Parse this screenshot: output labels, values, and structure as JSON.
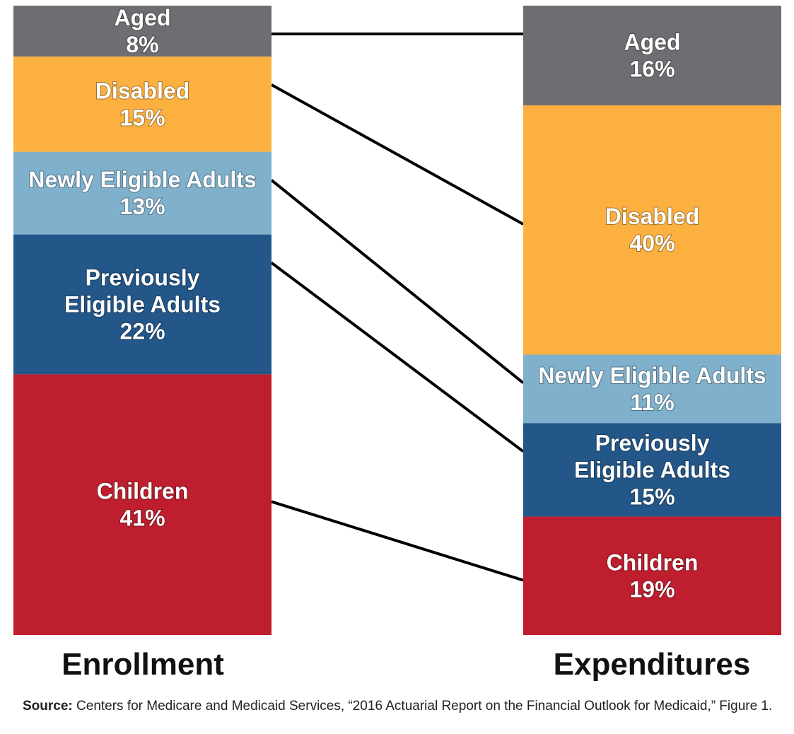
{
  "chart_data": {
    "type": "stacked-bar",
    "categories": [
      "Enrollment",
      "Expenditures"
    ],
    "segments": [
      {
        "label_lines": [
          "Aged"
        ],
        "enrollment": 8,
        "expenditures": 16,
        "color": "#6d6e71"
      },
      {
        "label_lines": [
          "Disabled"
        ],
        "enrollment": 15,
        "expenditures": 40,
        "color": "#fbb040"
      },
      {
        "label_lines": [
          "Newly Eligible Adults"
        ],
        "enrollment": 13,
        "expenditures": 11,
        "color": "#7fb0cc"
      },
      {
        "label_lines": [
          "Previously",
          "Eligible Adults"
        ],
        "enrollment": 22,
        "expenditures": 15,
        "color": "#235789"
      },
      {
        "label_lines": [
          "Children"
        ],
        "enrollment": 41,
        "expenditures": 19,
        "color": "#be1e2d"
      }
    ],
    "value_suffix": "%",
    "connector_color": "#000000",
    "title": "",
    "xlabel": "",
    "ylabel": ""
  },
  "labels": {
    "enrollment": "Enrollment",
    "expenditures": "Expenditures"
  },
  "source": {
    "prefix": "Source:",
    "text": " Centers for Medicare and Medicaid Services, “2016 Actuarial Report on the Financial Outlook for Medicaid,” Figure 1."
  }
}
